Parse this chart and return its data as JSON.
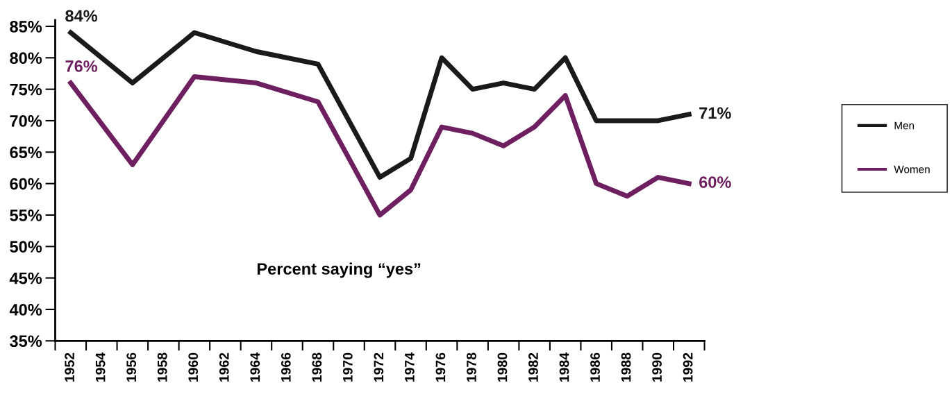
{
  "chart_data": {
    "type": "line",
    "x": [
      1952,
      1956,
      1960,
      1964,
      1968,
      1972,
      1974,
      1976,
      1978,
      1980,
      1982,
      1984,
      1986,
      1988,
      1990,
      1992
    ],
    "series": [
      {
        "name": "Men",
        "color": "#1a1a1a",
        "values": [
          84,
          76,
          84,
          81,
          79,
          61,
          64,
          80,
          75,
          76,
          75,
          80,
          70,
          70,
          70,
          71
        ],
        "value_labels": [
          "84%",
          null,
          null,
          null,
          null,
          null,
          null,
          null,
          null,
          null,
          null,
          null,
          null,
          null,
          null,
          "71%"
        ]
      },
      {
        "name": "Women",
        "color": "#6e1f5f",
        "values": [
          76,
          63,
          77,
          76,
          73,
          55,
          59,
          69,
          68,
          66,
          69,
          74,
          60,
          58,
          61,
          60
        ],
        "value_labels": [
          "76%",
          null,
          null,
          null,
          null,
          null,
          null,
          null,
          null,
          null,
          null,
          null,
          null,
          null,
          null,
          "60%"
        ]
      }
    ],
    "xlim": [
      1951,
      1993
    ],
    "xticks": [
      {
        "value": 1951,
        "label": null
      },
      {
        "value": 1952,
        "label": "1952"
      },
      {
        "value": 1953,
        "label": null
      },
      {
        "value": 1954,
        "label": "1954"
      },
      {
        "value": 1955,
        "label": null
      },
      {
        "value": 1956,
        "label": "1956"
      },
      {
        "value": 1957,
        "label": null
      },
      {
        "value": 1958,
        "label": "1958"
      },
      {
        "value": 1959,
        "label": null
      },
      {
        "value": 1960,
        "label": "1960"
      },
      {
        "value": 1961,
        "label": null
      },
      {
        "value": 1962,
        "label": "1962"
      },
      {
        "value": 1963,
        "label": null
      },
      {
        "value": 1964,
        "label": "1964"
      },
      {
        "value": 1965,
        "label": null
      },
      {
        "value": 1966,
        "label": "1966"
      },
      {
        "value": 1967,
        "label": null
      },
      {
        "value": 1968,
        "label": "1968"
      },
      {
        "value": 1969,
        "label": null
      },
      {
        "value": 1970,
        "label": "1970"
      },
      {
        "value": 1971,
        "label": null
      },
      {
        "value": 1972,
        "label": "1972"
      },
      {
        "value": 1973,
        "label": null
      },
      {
        "value": 1974,
        "label": "1974"
      },
      {
        "value": 1975,
        "label": null
      },
      {
        "value": 1976,
        "label": "1976"
      },
      {
        "value": 1977,
        "label": null
      },
      {
        "value": 1978,
        "label": "1978"
      },
      {
        "value": 1979,
        "label": null
      },
      {
        "value": 1980,
        "label": "1980"
      },
      {
        "value": 1981,
        "label": null
      },
      {
        "value": 1982,
        "label": "1982"
      },
      {
        "value": 1983,
        "label": null
      },
      {
        "value": 1984,
        "label": "1984"
      },
      {
        "value": 1985,
        "label": null
      },
      {
        "value": 1986,
        "label": "1986"
      },
      {
        "value": 1987,
        "label": null
      },
      {
        "value": 1988,
        "label": "1988"
      },
      {
        "value": 1989,
        "label": null
      },
      {
        "value": 1990,
        "label": "1990"
      },
      {
        "value": 1991,
        "label": null
      },
      {
        "value": 1992,
        "label": "1992"
      },
      {
        "value": 1993,
        "label": null
      }
    ],
    "ylim": [
      35,
      86
    ],
    "yticks": [
      {
        "value": 35,
        "label": "35%"
      },
      {
        "value": 40,
        "label": "40%"
      },
      {
        "value": 45,
        "label": "45%"
      },
      {
        "value": 50,
        "label": "50%"
      },
      {
        "value": 55,
        "label": "55%"
      },
      {
        "value": 60,
        "label": "60%"
      },
      {
        "value": 65,
        "label": "65%"
      },
      {
        "value": 70,
        "label": "70%"
      },
      {
        "value": 75,
        "label": "75%"
      },
      {
        "value": 80,
        "label": "80%"
      },
      {
        "value": 85,
        "label": "85%"
      }
    ],
    "annotations": [
      "Percent saying “yes”"
    ],
    "grid": false,
    "legend": "right",
    "marker": "none",
    "line_style": "solid"
  }
}
